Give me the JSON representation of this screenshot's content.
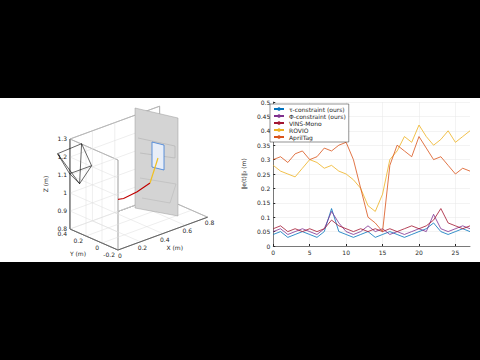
{
  "chart_data": [
    {
      "type": "line3d",
      "xlabel": "X (m)",
      "ylabel": "Y (m)",
      "zlabel": "Z (m)",
      "xlim": [
        0,
        0.8
      ],
      "xticks": [
        0,
        0.2,
        0.4,
        0.6,
        0.8
      ],
      "ylim": [
        -0.2,
        0.4
      ],
      "yticks": [
        -0.2,
        0,
        0.2,
        0.4
      ],
      "zlim": [
        0.8,
        1.3
      ],
      "zticks": [
        0.8,
        0.9,
        1,
        1.1,
        1.2,
        1.3
      ],
      "x": [
        0.05,
        0.08,
        0.12,
        0.2,
        0.3,
        0.4,
        0.5
      ],
      "y": [
        0.35,
        0.3,
        0.25,
        0.2,
        0.15,
        0.12,
        0.1
      ],
      "z": [
        1.05,
        1.0,
        0.97,
        0.95,
        0.95,
        0.97,
        1.0
      ],
      "color": "#c00000",
      "grid": true
    },
    {
      "type": "line",
      "ylabel": "‖e(t)‖₂ (m)",
      "x": [
        0,
        1,
        2,
        3,
        4,
        5,
        6,
        7,
        8,
        9,
        10,
        11,
        12,
        13,
        14,
        15,
        16,
        17,
        18,
        19,
        20,
        21,
        22,
        23,
        24,
        25,
        26,
        27
      ],
      "series": [
        {
          "name": "τ-constraint (ours)",
          "color": "#0072BD",
          "values": [
            0.04,
            0.05,
            0.03,
            0.04,
            0.05,
            0.04,
            0.03,
            0.05,
            0.13,
            0.05,
            0.04,
            0.03,
            0.04,
            0.05,
            0.03,
            0.04,
            0.05,
            0.04,
            0.03,
            0.04,
            0.05,
            0.06,
            0.08,
            0.05,
            0.04,
            0.05,
            0.06,
            0.05
          ]
        },
        {
          "name": "Φ-constraint (ours)",
          "color": "#7E2F8E",
          "values": [
            0.05,
            0.06,
            0.04,
            0.05,
            0.06,
            0.05,
            0.04,
            0.06,
            0.12,
            0.08,
            0.05,
            0.04,
            0.05,
            0.07,
            0.05,
            0.06,
            0.04,
            0.05,
            0.04,
            0.05,
            0.06,
            0.05,
            0.11,
            0.06,
            0.05,
            0.06,
            0.07,
            0.06
          ]
        },
        {
          "name": "VINS-Mono",
          "color": "#A2142F",
          "values": [
            0.06,
            0.07,
            0.05,
            0.06,
            0.05,
            0.06,
            0.05,
            0.06,
            0.09,
            0.07,
            0.06,
            0.05,
            0.06,
            0.05,
            0.06,
            0.05,
            0.06,
            0.05,
            0.06,
            0.07,
            0.06,
            0.07,
            0.09,
            0.13,
            0.08,
            0.07,
            0.06,
            0.07
          ]
        },
        {
          "name": "ROVIO",
          "color": "#EDB120",
          "values": [
            0.28,
            0.26,
            0.25,
            0.24,
            0.27,
            0.3,
            0.29,
            0.27,
            0.28,
            0.26,
            0.25,
            0.23,
            0.2,
            0.14,
            0.12,
            0.18,
            0.3,
            0.33,
            0.38,
            0.36,
            0.42,
            0.38,
            0.35,
            0.37,
            0.4,
            0.36,
            0.38,
            0.4
          ]
        },
        {
          "name": "AprilTag",
          "color": "#D95319",
          "values": [
            0.3,
            0.31,
            0.29,
            0.32,
            0.33,
            0.3,
            0.31,
            0.34,
            0.33,
            0.35,
            0.36,
            0.3,
            0.2,
            0.1,
            0.08,
            0.05,
            0.28,
            0.35,
            0.33,
            0.31,
            0.38,
            0.34,
            0.3,
            0.31,
            0.28,
            0.25,
            0.27,
            0.26
          ]
        }
      ],
      "xlim": [
        0,
        27
      ],
      "xticks": [
        0,
        5,
        10,
        15,
        20,
        25
      ],
      "ylim": [
        0,
        0.5
      ],
      "yticks": [
        0,
        0.05,
        0.1,
        0.15,
        0.2,
        0.25,
        0.3,
        0.35,
        0.4,
        0.45,
        0.5
      ],
      "grid": true,
      "legend": "upper left"
    }
  ]
}
